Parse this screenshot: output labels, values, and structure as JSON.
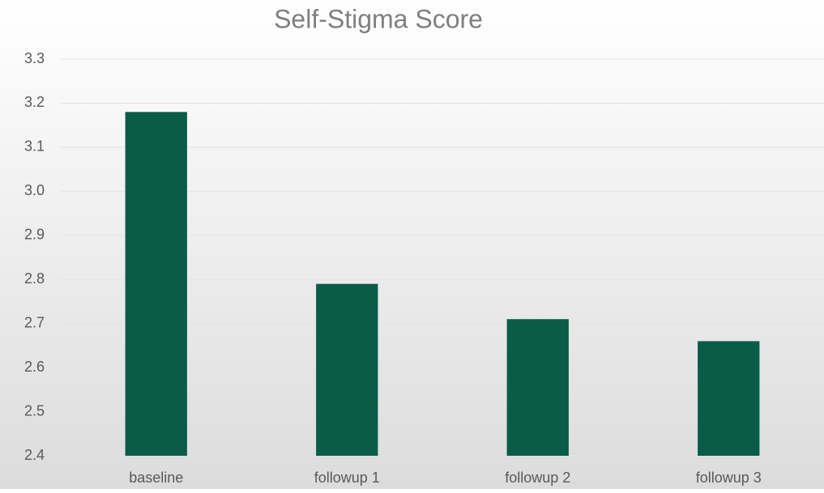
{
  "chart_data": {
    "type": "bar",
    "title": "Self-Stigma Score",
    "categories": [
      "baseline",
      "followup 1",
      "followup 2",
      "followup 3"
    ],
    "values": [
      3.18,
      2.79,
      2.71,
      2.66
    ],
    "color": "#0a5c47",
    "ylim": [
      2.4,
      3.3
    ],
    "yticks": [
      2.4,
      2.5,
      2.6,
      2.7,
      2.8,
      2.9,
      {
        "value": 3,
        "label": "3.0"
      },
      3.1,
      3.2,
      3.3
    ],
    "grid": true
  }
}
